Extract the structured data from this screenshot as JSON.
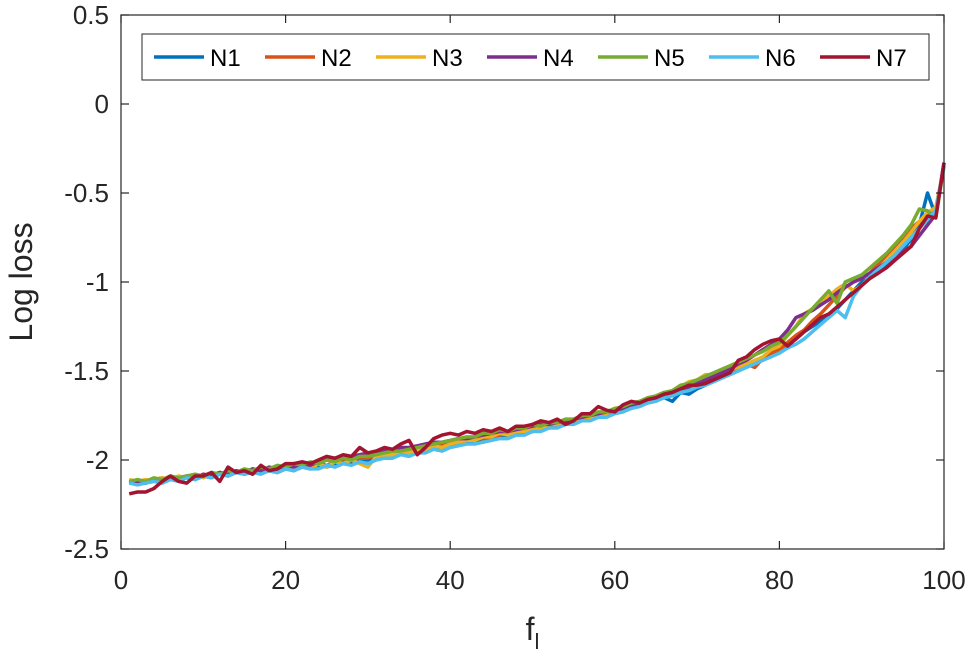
{
  "chart_data": {
    "type": "line",
    "xlabel": "f",
    "xlabel_sub": "l",
    "ylabel": "Log loss",
    "xlim": [
      0,
      100
    ],
    "ylim": [
      -2.5,
      0.5
    ],
    "xticks": [
      0,
      20,
      40,
      60,
      80,
      100
    ],
    "yticks": [
      -2.5,
      -2,
      -1.5,
      -1,
      -0.5,
      0,
      0.5
    ],
    "xtick_labels": [
      "0",
      "20",
      "40",
      "60",
      "80",
      "100"
    ],
    "ytick_labels": [
      "-2.5",
      "-2",
      "-1.5",
      "-1",
      "-0.5",
      "0",
      "0.5"
    ],
    "grid": false,
    "legend_position": "top",
    "x": [
      1,
      2,
      3,
      4,
      5,
      6,
      7,
      8,
      9,
      10,
      11,
      12,
      13,
      14,
      15,
      16,
      17,
      18,
      19,
      20,
      21,
      22,
      23,
      24,
      25,
      26,
      27,
      28,
      29,
      30,
      31,
      32,
      33,
      34,
      35,
      36,
      37,
      38,
      39,
      40,
      41,
      42,
      43,
      44,
      45,
      46,
      47,
      48,
      49,
      50,
      51,
      52,
      53,
      54,
      55,
      56,
      57,
      58,
      59,
      60,
      61,
      62,
      63,
      64,
      65,
      66,
      67,
      68,
      69,
      70,
      71,
      72,
      73,
      74,
      75,
      76,
      77,
      78,
      79,
      80,
      81,
      82,
      83,
      84,
      85,
      86,
      87,
      88,
      89,
      90,
      91,
      92,
      93,
      94,
      95,
      96,
      97,
      98,
      99,
      100
    ],
    "series": [
      {
        "name": "N1",
        "color": "#0072BD",
        "values": [
          -2.12,
          -2.13,
          -2.12,
          -2.11,
          -2.12,
          -2.1,
          -2.11,
          -2.1,
          -2.11,
          -2.09,
          -2.1,
          -2.08,
          -2.09,
          -2.07,
          -2.08,
          -2.06,
          -2.07,
          -2.06,
          -2.07,
          -2.05,
          -2.06,
          -2.04,
          -2.05,
          -2.03,
          -2.04,
          -2.02,
          -2.02,
          -2.01,
          -2.0,
          -2.0,
          -1.98,
          -1.97,
          -1.98,
          -1.96,
          -1.96,
          -1.94,
          -1.95,
          -1.93,
          -1.93,
          -1.92,
          -1.91,
          -1.9,
          -1.89,
          -1.9,
          -1.88,
          -1.87,
          -1.86,
          -1.86,
          -1.84,
          -1.84,
          -1.83,
          -1.82,
          -1.8,
          -1.8,
          -1.78,
          -1.77,
          -1.76,
          -1.75,
          -1.74,
          -1.73,
          -1.72,
          -1.71,
          -1.69,
          -1.68,
          -1.66,
          -1.65,
          -1.67,
          -1.62,
          -1.63,
          -1.6,
          -1.58,
          -1.54,
          -1.52,
          -1.5,
          -1.49,
          -1.47,
          -1.45,
          -1.43,
          -1.4,
          -1.38,
          -1.35,
          -1.32,
          -1.28,
          -1.25,
          -1.22,
          -1.19,
          -1.15,
          -1.1,
          -1.05,
          -1.0,
          -0.98,
          -0.95,
          -0.9,
          -0.86,
          -0.82,
          -0.76,
          -0.68,
          -0.5,
          -0.63,
          -0.33
        ]
      },
      {
        "name": "N2",
        "color": "#D95319",
        "values": [
          -2.13,
          -2.12,
          -2.13,
          -2.11,
          -2.1,
          -2.11,
          -2.1,
          -2.09,
          -2.1,
          -2.08,
          -2.09,
          -2.07,
          -2.08,
          -2.06,
          -2.07,
          -2.05,
          -2.06,
          -2.05,
          -2.04,
          -2.04,
          -2.05,
          -2.03,
          -2.04,
          -2.02,
          -2.03,
          -2.01,
          -2.01,
          -2.0,
          -1.99,
          -1.99,
          -1.97,
          -1.97,
          -1.96,
          -1.95,
          -1.95,
          -1.93,
          -1.94,
          -1.92,
          -1.92,
          -1.91,
          -1.9,
          -1.89,
          -1.88,
          -1.88,
          -1.87,
          -1.86,
          -1.85,
          -1.85,
          -1.83,
          -1.83,
          -1.82,
          -1.81,
          -1.8,
          -1.79,
          -1.78,
          -1.77,
          -1.76,
          -1.75,
          -1.74,
          -1.72,
          -1.73,
          -1.7,
          -1.69,
          -1.67,
          -1.66,
          -1.64,
          -1.63,
          -1.61,
          -1.6,
          -1.58,
          -1.56,
          -1.54,
          -1.52,
          -1.5,
          -1.48,
          -1.46,
          -1.48,
          -1.43,
          -1.4,
          -1.38,
          -1.34,
          -1.3,
          -1.27,
          -1.22,
          -1.18,
          -1.13,
          -1.08,
          -1.03,
          -1.0,
          -0.98,
          -0.95,
          -0.9,
          -0.85,
          -0.8,
          -0.75,
          -0.7,
          -0.66,
          -0.62,
          -0.6,
          -0.35
        ]
      },
      {
        "name": "N3",
        "color": "#EDB120",
        "values": [
          -2.11,
          -2.12,
          -2.11,
          -2.12,
          -2.1,
          -2.11,
          -2.09,
          -2.1,
          -2.08,
          -2.1,
          -2.08,
          -2.07,
          -2.09,
          -2.06,
          -2.07,
          -2.05,
          -2.07,
          -2.04,
          -2.06,
          -2.04,
          -2.05,
          -2.03,
          -2.05,
          -2.02,
          -2.04,
          -2.01,
          -2.02,
          -2.0,
          -2.02,
          -2.04,
          -1.98,
          -1.97,
          -1.97,
          -1.95,
          -1.96,
          -1.94,
          -1.94,
          -1.92,
          -1.93,
          -1.91,
          -1.9,
          -1.89,
          -1.89,
          -1.87,
          -1.87,
          -1.85,
          -1.86,
          -1.84,
          -1.84,
          -1.82,
          -1.83,
          -1.8,
          -1.8,
          -1.78,
          -1.78,
          -1.76,
          -1.76,
          -1.74,
          -1.74,
          -1.71,
          -1.72,
          -1.69,
          -1.68,
          -1.66,
          -1.64,
          -1.62,
          -1.62,
          -1.59,
          -1.56,
          -1.55,
          -1.52,
          -1.52,
          -1.51,
          -1.49,
          -1.48,
          -1.46,
          -1.44,
          -1.42,
          -1.38,
          -1.36,
          -1.3,
          -1.25,
          -1.18,
          -1.15,
          -1.12,
          -1.08,
          -1.04,
          -1.01,
          -1.05,
          -1.02,
          -0.98,
          -0.93,
          -0.88,
          -0.83,
          -0.78,
          -0.72,
          -0.66,
          -0.61,
          -0.58,
          -0.35
        ]
      },
      {
        "name": "N4",
        "color": "#7E2F8E",
        "values": [
          -2.13,
          -2.12,
          -2.13,
          -2.11,
          -2.12,
          -2.1,
          -2.11,
          -2.09,
          -2.1,
          -2.08,
          -2.09,
          -2.07,
          -2.08,
          -2.06,
          -2.07,
          -2.05,
          -2.06,
          -2.04,
          -2.05,
          -2.03,
          -2.04,
          -2.02,
          -2.03,
          -2.01,
          -2.0,
          -1.99,
          -1.98,
          -1.98,
          -1.97,
          -1.96,
          -1.95,
          -1.95,
          -1.94,
          -1.93,
          -1.93,
          -1.92,
          -1.91,
          -1.9,
          -1.9,
          -1.89,
          -1.88,
          -1.88,
          -1.87,
          -1.86,
          -1.85,
          -1.84,
          -1.84,
          -1.83,
          -1.82,
          -1.81,
          -1.8,
          -1.8,
          -1.79,
          -1.78,
          -1.77,
          -1.76,
          -1.75,
          -1.74,
          -1.73,
          -1.72,
          -1.71,
          -1.7,
          -1.69,
          -1.67,
          -1.66,
          -1.64,
          -1.63,
          -1.61,
          -1.59,
          -1.57,
          -1.55,
          -1.53,
          -1.51,
          -1.49,
          -1.46,
          -1.44,
          -1.41,
          -1.38,
          -1.35,
          -1.32,
          -1.27,
          -1.2,
          -1.18,
          -1.16,
          -1.13,
          -1.1,
          -1.06,
          -1.03,
          -1.0,
          -0.98,
          -0.95,
          -0.92,
          -0.89,
          -0.86,
          -0.83,
          -0.8,
          -0.74,
          -0.68,
          -0.62,
          -0.33
        ]
      },
      {
        "name": "N5",
        "color": "#77AC30",
        "values": [
          -2.12,
          -2.11,
          -2.12,
          -2.1,
          -2.11,
          -2.09,
          -2.1,
          -2.09,
          -2.08,
          -2.09,
          -2.07,
          -2.08,
          -2.06,
          -2.07,
          -2.05,
          -2.06,
          -2.04,
          -2.05,
          -2.03,
          -2.04,
          -2.02,
          -2.03,
          -2.01,
          -2.02,
          -2.0,
          -2.01,
          -1.99,
          -2.0,
          -1.98,
          -1.98,
          -1.97,
          -1.96,
          -1.95,
          -1.95,
          -1.94,
          -1.93,
          -1.92,
          -1.91,
          -1.9,
          -1.89,
          -1.88,
          -1.87,
          -1.87,
          -1.85,
          -1.85,
          -1.83,
          -1.84,
          -1.82,
          -1.82,
          -1.8,
          -1.81,
          -1.79,
          -1.79,
          -1.77,
          -1.77,
          -1.75,
          -1.75,
          -1.73,
          -1.73,
          -1.71,
          -1.7,
          -1.68,
          -1.67,
          -1.65,
          -1.64,
          -1.62,
          -1.61,
          -1.58,
          -1.57,
          -1.55,
          -1.53,
          -1.51,
          -1.49,
          -1.47,
          -1.45,
          -1.43,
          -1.41,
          -1.39,
          -1.36,
          -1.34,
          -1.3,
          -1.25,
          -1.2,
          -1.15,
          -1.1,
          -1.05,
          -1.12,
          -1.0,
          -0.98,
          -0.96,
          -0.92,
          -0.88,
          -0.84,
          -0.79,
          -0.74,
          -0.68,
          -0.59,
          -0.6,
          -0.64,
          -0.35
        ]
      },
      {
        "name": "N6",
        "color": "#4DBEEE",
        "values": [
          -2.13,
          -2.14,
          -2.13,
          -2.12,
          -2.13,
          -2.11,
          -2.12,
          -2.1,
          -2.11,
          -2.09,
          -2.1,
          -2.08,
          -2.09,
          -2.07,
          -2.08,
          -2.07,
          -2.08,
          -2.06,
          -2.07,
          -2.05,
          -2.06,
          -2.04,
          -2.05,
          -2.05,
          -2.03,
          -2.04,
          -2.02,
          -2.03,
          -2.01,
          -2.02,
          -2.0,
          -1.99,
          -1.99,
          -1.97,
          -1.98,
          -1.96,
          -1.96,
          -1.94,
          -1.95,
          -1.93,
          -1.92,
          -1.91,
          -1.91,
          -1.9,
          -1.89,
          -1.88,
          -1.88,
          -1.86,
          -1.86,
          -1.84,
          -1.84,
          -1.82,
          -1.82,
          -1.8,
          -1.8,
          -1.78,
          -1.78,
          -1.76,
          -1.76,
          -1.74,
          -1.73,
          -1.71,
          -1.7,
          -1.68,
          -1.67,
          -1.65,
          -1.64,
          -1.62,
          -1.61,
          -1.59,
          -1.58,
          -1.56,
          -1.54,
          -1.52,
          -1.5,
          -1.48,
          -1.46,
          -1.44,
          -1.42,
          -1.4,
          -1.37,
          -1.35,
          -1.32,
          -1.28,
          -1.24,
          -1.2,
          -1.16,
          -1.2,
          -1.08,
          -1.02,
          -0.97,
          -0.93,
          -0.89,
          -0.85,
          -0.8,
          -0.75,
          -0.7,
          -0.65,
          -0.6,
          -0.35
        ]
      },
      {
        "name": "N7",
        "color": "#A2142F",
        "values": [
          -2.19,
          -2.18,
          -2.18,
          -2.16,
          -2.12,
          -2.09,
          -2.12,
          -2.13,
          -2.09,
          -2.09,
          -2.07,
          -2.12,
          -2.04,
          -2.07,
          -2.06,
          -2.08,
          -2.03,
          -2.06,
          -2.05,
          -2.02,
          -2.02,
          -2.01,
          -2.02,
          -2.0,
          -1.98,
          -1.99,
          -1.97,
          -1.98,
          -1.93,
          -1.96,
          -1.95,
          -1.93,
          -1.94,
          -1.91,
          -1.89,
          -1.97,
          -1.93,
          -1.88,
          -1.86,
          -1.85,
          -1.86,
          -1.84,
          -1.85,
          -1.83,
          -1.84,
          -1.82,
          -1.84,
          -1.81,
          -1.81,
          -1.8,
          -1.78,
          -1.79,
          -1.77,
          -1.8,
          -1.78,
          -1.74,
          -1.74,
          -1.7,
          -1.72,
          -1.73,
          -1.69,
          -1.67,
          -1.68,
          -1.66,
          -1.65,
          -1.63,
          -1.62,
          -1.6,
          -1.58,
          -1.58,
          -1.57,
          -1.55,
          -1.53,
          -1.51,
          -1.44,
          -1.42,
          -1.38,
          -1.35,
          -1.33,
          -1.32,
          -1.36,
          -1.32,
          -1.28,
          -1.24,
          -1.2,
          -1.18,
          -1.14,
          -1.1,
          -1.06,
          -1.02,
          -0.98,
          -0.95,
          -0.92,
          -0.88,
          -0.84,
          -0.8,
          -0.7,
          -0.63,
          -0.64,
          -0.33
        ]
      }
    ]
  }
}
